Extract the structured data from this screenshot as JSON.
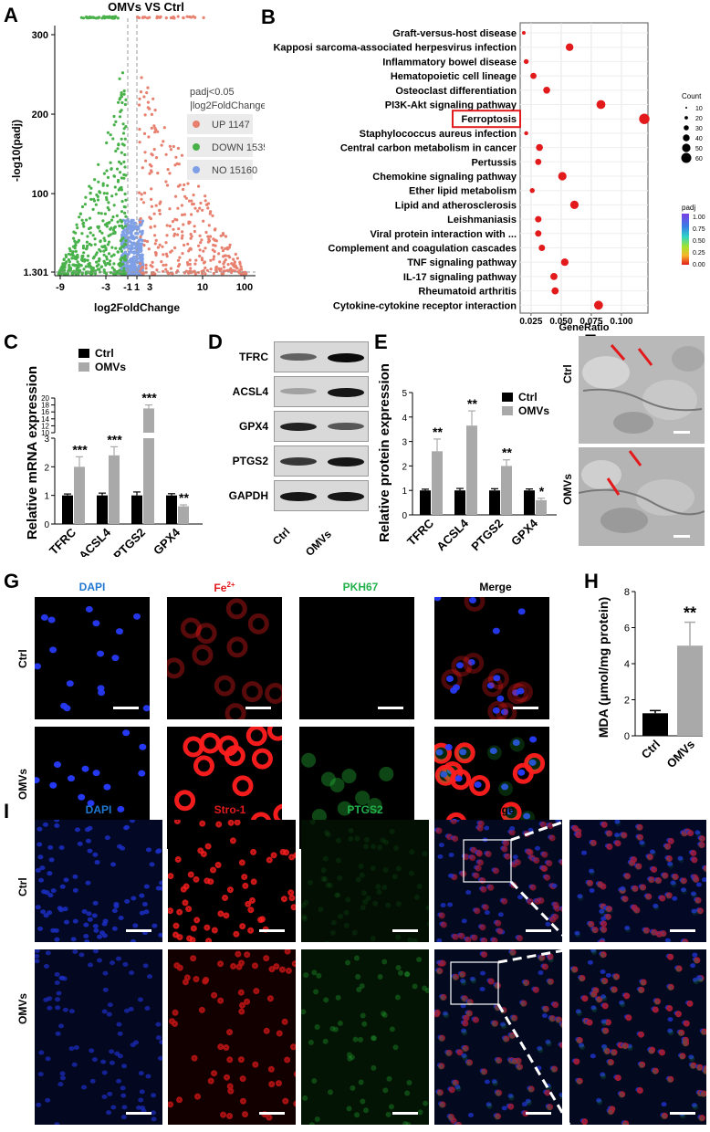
{
  "panel_letters": {
    "A": "A",
    "B": "B",
    "C": "C",
    "D": "D",
    "E": "E",
    "F": "F",
    "G": "G",
    "H": "H",
    "I": "I"
  },
  "colors": {
    "up": "#e8806f",
    "down": "#49b14a",
    "no": "#7f9fe6",
    "bar_ctrl": "#000000",
    "bar_omv": "#a9a9a9",
    "dot": "#e31a1c",
    "highlight": "#e31a1c",
    "blue_label": "#1f78d1",
    "red_label": "#e31a1c",
    "green_label": "#22b14c"
  },
  "chart_data": [
    {
      "id": "A",
      "type": "scatter",
      "title": "OMVs VS Ctrl",
      "xlabel": "log2FoldChange",
      "ylabel": "-log10(padj)",
      "xticks": [
        "-9",
        "-3",
        "-1",
        "1",
        "3",
        "10",
        "100"
      ],
      "yticks": [
        "1.301",
        "100",
        "200",
        "300"
      ],
      "legend_title": [
        "padj<0.05",
        "|log2FoldChange|>1"
      ],
      "series": [
        {
          "name": "UP 1147",
          "count": 1147
        },
        {
          "name": "DOWN 1535",
          "count": 1535
        },
        {
          "name": "NO 15160",
          "count": 15160
        }
      ]
    },
    {
      "id": "B",
      "type": "scatter",
      "xlabel": "GeneRatio",
      "xticks": [
        "0.025",
        "0.050",
        "0.075",
        "0.100"
      ],
      "xlim": [
        0.016,
        0.122
      ],
      "categories": [
        "Graft-versus-host disease",
        "Kapposi sarcoma-associated herpesvirus infection",
        "Inflammatory bowel disease",
        "Hematopoietic cell lineage",
        "Osteoclast differentiation",
        "PI3K-Akt signaling pathway",
        "Ferroptosis",
        "Staphylococcus aureus infection",
        "Central carbon metabolism in cancer",
        "Pertussis",
        "Chemokine signaling pathway",
        "Ether lipid metabolism",
        "Lipid and atherosclerosis",
        "Leishmaniasis",
        "Viral protein interaction with ...",
        "Complement and coagulation cascades",
        "TNF signaling pathway",
        "IL-17 signaling pathway",
        "Rheumatoid arthritis",
        "Cytokine-cytokine receptor interaction"
      ],
      "values": [
        0.019,
        0.057,
        0.021,
        0.027,
        0.038,
        0.083,
        0.119,
        0.021,
        0.032,
        0.031,
        0.051,
        0.026,
        0.061,
        0.031,
        0.031,
        0.034,
        0.053,
        0.044,
        0.045,
        0.081
      ],
      "sizes": [
        5,
        22,
        9,
        14,
        18,
        30,
        40,
        6,
        18,
        14,
        26,
        9,
        26,
        15,
        15,
        15,
        21,
        19,
        19,
        30
      ],
      "highlighted": "Ferroptosis",
      "size_legend_title": "Count",
      "size_legend": [
        "10",
        "20",
        "30",
        "40",
        "50",
        "60"
      ],
      "color_legend_title": "padj",
      "color_legend": [
        "1.00",
        "0.75",
        "0.50",
        "0.25",
        "0.00"
      ]
    },
    {
      "id": "C",
      "type": "bar",
      "ylabel": "Relative mRNA expression",
      "categories": [
        "TFRC",
        "ACSL4",
        "PTGS2",
        "GPX4"
      ],
      "series": [
        {
          "name": "Ctrl",
          "values": [
            1.0,
            1.0,
            1.0,
            1.0
          ],
          "errors": [
            0.05,
            0.08,
            0.12,
            0.06
          ]
        },
        {
          "name": "OMVs",
          "values": [
            2.0,
            2.4,
            17.0,
            0.62
          ],
          "errors": [
            0.35,
            0.3,
            1.0,
            0.05
          ]
        }
      ],
      "yticks_lower": [
        "0",
        "1",
        "2",
        "3"
      ],
      "yticks_upper": [
        "10",
        "12",
        "14",
        "16",
        "18",
        "20"
      ],
      "significance": [
        "***",
        "***",
        "***",
        "**"
      ]
    },
    {
      "id": "E",
      "type": "bar",
      "ylabel": "Relative protein expression",
      "categories": [
        "TFRC",
        "ACSL4",
        "PTGS2",
        "GPX4"
      ],
      "series": [
        {
          "name": "Ctrl",
          "values": [
            1.0,
            1.0,
            1.0,
            1.0
          ],
          "errors": [
            0.05,
            0.08,
            0.07,
            0.06
          ]
        },
        {
          "name": "OMVs",
          "values": [
            2.6,
            3.65,
            2.0,
            0.6
          ],
          "errors": [
            0.5,
            0.6,
            0.25,
            0.08
          ]
        }
      ],
      "yticks": [
        "0",
        "1",
        "2",
        "3",
        "4",
        "5"
      ],
      "ylim": [
        0,
        5
      ],
      "significance": [
        "**",
        "**",
        "**",
        "*"
      ]
    },
    {
      "id": "H",
      "type": "bar",
      "ylabel": "MDA (μmol/mg protein)",
      "categories": [
        "Ctrl",
        "OMVs"
      ],
      "values": [
        1.25,
        5.0
      ],
      "errors": [
        0.15,
        1.3
      ],
      "yticks": [
        "0",
        "2",
        "4",
        "6",
        "8"
      ],
      "ylim": [
        0,
        8
      ],
      "significance": [
        "",
        "**"
      ]
    }
  ],
  "blot": {
    "bands": [
      "TFRC",
      "ACSL4",
      "GPX4",
      "PTGS2",
      "GAPDH"
    ],
    "lanes": [
      "Ctrl",
      "OMVs"
    ]
  },
  "panelF": {
    "rows": [
      "Ctrl",
      "OMVs"
    ]
  },
  "panelG": {
    "columns": [
      "DAPI",
      "Fe",
      "2+",
      "PKH67",
      "Merge"
    ],
    "rows": [
      "Ctrl",
      "OMVs"
    ]
  },
  "panelI": {
    "columns": [
      "DAPI",
      "Stro-1",
      "PTGS2",
      "Merge"
    ],
    "rows": [
      "Ctrl",
      "OMVs"
    ]
  }
}
